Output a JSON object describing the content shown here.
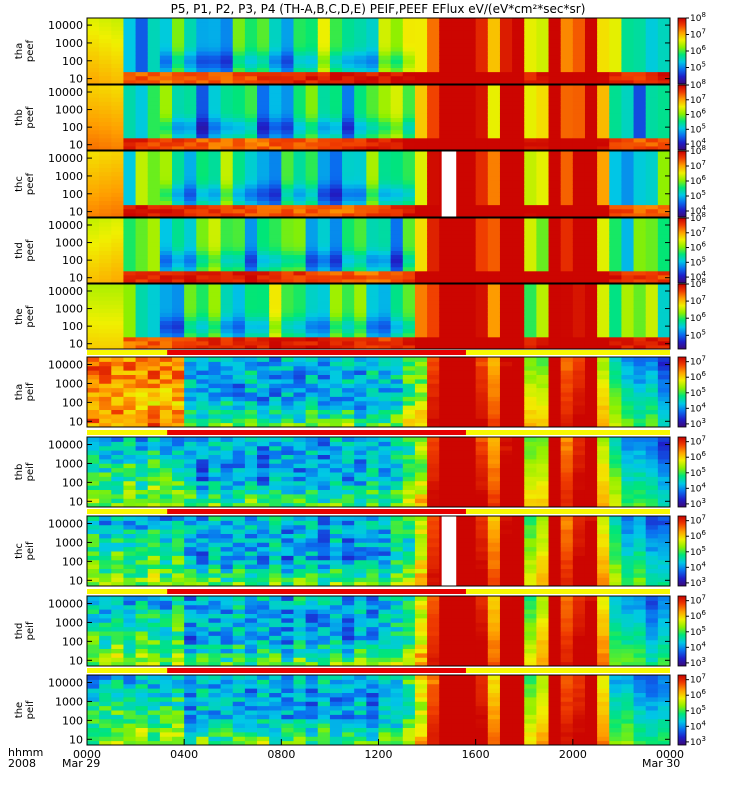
{
  "chart_data": {
    "type": "heatmap",
    "title": "P5, P1, P2, P3, P4 (TH-A,B,C,D,E) PEIF,PEEF EFlux eV/(eV*cm²*sec*sr)",
    "x_axis": {
      "unit_label": "hhmm",
      "year": "2008",
      "range_hours": [
        0,
        24
      ],
      "ticks": [
        {
          "hour": 0,
          "label": "0000"
        },
        {
          "hour": 4,
          "label": "0400"
        },
        {
          "hour": 8,
          "label": "0800"
        },
        {
          "hour": 12,
          "label": "1200"
        },
        {
          "hour": 16,
          "label": "1600"
        },
        {
          "hour": 20,
          "label": "2000"
        },
        {
          "hour": 24,
          "label": "0000"
        }
      ],
      "start_date": "Mar 29",
      "end_date": "Mar 30"
    },
    "y_axis": {
      "scale": "log",
      "range_eV": [
        5,
        25000
      ],
      "ticks": [
        {
          "value": 10,
          "label": "10"
        },
        {
          "value": 100,
          "label": "100"
        },
        {
          "value": 1000,
          "label": "1000"
        },
        {
          "value": 10000,
          "label": "10000"
        }
      ]
    },
    "colormap": [
      "#3c0a78",
      "#1e1ec8",
      "#0a6ef0",
      "#00c8e6",
      "#00e678",
      "#8cf000",
      "#f0f000",
      "#ffa000",
      "#f03c00",
      "#c80000"
    ],
    "panels": [
      {
        "label": [
          "tha",
          "peef"
        ],
        "species": "electron",
        "colorbar": {
          "log_min": 4,
          "log_max": 8,
          "ticks": [
            5,
            6,
            7,
            8
          ]
        }
      },
      {
        "label": [
          "thb",
          "peef"
        ],
        "species": "electron",
        "colorbar": {
          "log_min": 3.6,
          "log_max": 8,
          "ticks": [
            4,
            5,
            6,
            7,
            8
          ]
        }
      },
      {
        "label": [
          "thc",
          "peef"
        ],
        "species": "electron",
        "colorbar": {
          "log_min": 3.6,
          "log_max": 8,
          "ticks": [
            4,
            5,
            6,
            7,
            8
          ]
        }
      },
      {
        "label": [
          "thd",
          "peef"
        ],
        "species": "electron",
        "colorbar": {
          "log_min": 3.6,
          "log_max": 8,
          "ticks": [
            4,
            5,
            6,
            7,
            8
          ]
        }
      },
      {
        "label": [
          "the",
          "peef"
        ],
        "species": "electron",
        "colorbar": {
          "log_min": 4.2,
          "log_max": 8,
          "ticks": [
            5,
            6,
            7,
            8
          ]
        }
      },
      {
        "label": [
          "tha",
          "peif"
        ],
        "species": "ion",
        "colorbar": {
          "log_min": 2.8,
          "log_max": 7.3,
          "ticks": [
            3,
            4,
            5,
            6,
            7
          ]
        }
      },
      {
        "label": [
          "thb",
          "peif"
        ],
        "species": "ion",
        "colorbar": {
          "log_min": 2.8,
          "log_max": 7.3,
          "ticks": [
            3,
            4,
            5,
            6,
            7
          ]
        }
      },
      {
        "label": [
          "thc",
          "peif"
        ],
        "species": "ion",
        "colorbar": {
          "log_min": 2.8,
          "log_max": 7.3,
          "ticks": [
            3,
            4,
            5,
            6,
            7
          ]
        }
      },
      {
        "label": [
          "thd",
          "peif"
        ],
        "species": "ion",
        "colorbar": {
          "log_min": 2.8,
          "log_max": 7.3,
          "ticks": [
            3,
            4,
            5,
            6,
            7
          ]
        }
      },
      {
        "label": [
          "the",
          "peif"
        ],
        "species": "ion",
        "colorbar": {
          "log_min": 2.8,
          "log_max": 7.3,
          "ticks": [
            3,
            4,
            5,
            6,
            7
          ]
        }
      }
    ],
    "mode_bar_hours": [
      3.3,
      15.6
    ],
    "data_gaps_hours": [
      {
        "panel": 2,
        "range": [
          14.6,
          15.2
        ]
      },
      {
        "panel": 7,
        "range": [
          14.6,
          15.2
        ]
      }
    ]
  }
}
